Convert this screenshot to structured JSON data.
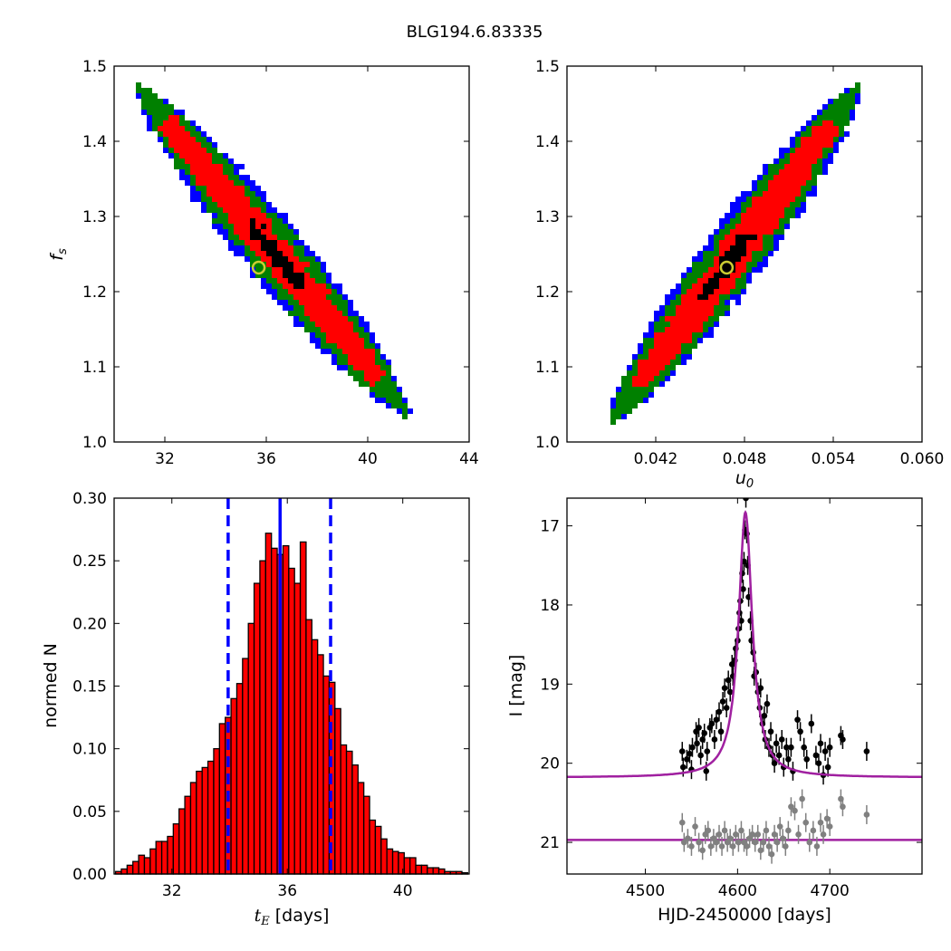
{
  "title": "BLG194.6.83335",
  "colors": {
    "sigma1": "#000000",
    "sigma2": "#ff0000",
    "sigma3": "#008000",
    "sigma4": "#0000ff",
    "best_marker": "#cccc33",
    "hist_fill": "#ff0000",
    "vline": "#0000ff",
    "model": "#a020a0",
    "residuals": "#808080",
    "data": "#000000"
  },
  "chart_data": [
    {
      "type": "heatmap",
      "panel": "top-left",
      "xlabel": "",
      "ylabel_text": "f",
      "ylabel_sub": "s",
      "xlim": [
        30,
        44
      ],
      "ylim": [
        1.0,
        1.5
      ],
      "xticks": [
        "32",
        "36",
        "40",
        "44"
      ],
      "yticks": [
        "1.0",
        "1.1",
        "1.2",
        "1.3",
        "1.4",
        "1.5"
      ],
      "ridge": {
        "x_start": 31.0,
        "y_start": 1.47,
        "x_end": 41.5,
        "y_end": 1.04
      },
      "best_fit": {
        "x": 35.7,
        "y": 1.232
      }
    },
    {
      "type": "heatmap",
      "panel": "top-right",
      "xlabel_text": "u",
      "xlabel_sub": "0",
      "ylabel": "",
      "xlim": [
        0.036,
        0.06
      ],
      "ylim": [
        1.0,
        1.5
      ],
      "xticks": [
        "0.042",
        "0.048",
        "0.054",
        "0.060"
      ],
      "yticks": [
        "1.0",
        "1.1",
        "1.2",
        "1.3",
        "1.4",
        "1.5"
      ],
      "ridge": {
        "x_start": 0.0391,
        "y_start": 1.03,
        "x_end": 0.0556,
        "y_end": 1.47
      },
      "best_fit": {
        "x": 0.0468,
        "y": 1.232
      }
    },
    {
      "type": "bar",
      "panel": "bottom-left",
      "xlabel_text": "t",
      "xlabel_sub": "E",
      "xlabel_rest": "[days]",
      "ylabel": "normed N",
      "xlim": [
        30.0,
        42.3
      ],
      "ylim": [
        0.0,
        0.3
      ],
      "xticks": [
        "32",
        "36",
        "40"
      ],
      "yticks": [
        "0.00",
        "0.05",
        "0.10",
        "0.15",
        "0.20",
        "0.25",
        "0.30"
      ],
      "bin_start": 30.05,
      "bin_width": 0.2,
      "values": [
        0.002,
        0.004,
        0.007,
        0.01,
        0.015,
        0.013,
        0.02,
        0.026,
        0.026,
        0.03,
        0.04,
        0.052,
        0.062,
        0.073,
        0.082,
        0.085,
        0.09,
        0.1,
        0.12,
        0.125,
        0.14,
        0.152,
        0.172,
        0.2,
        0.232,
        0.25,
        0.272,
        0.26,
        0.255,
        0.262,
        0.244,
        0.232,
        0.265,
        0.203,
        0.187,
        0.175,
        0.158,
        0.153,
        0.132,
        0.103,
        0.098,
        0.087,
        0.073,
        0.062,
        0.043,
        0.038,
        0.028,
        0.02,
        0.018,
        0.017,
        0.013,
        0.013,
        0.007,
        0.007,
        0.005,
        0.005,
        0.004,
        0.002,
        0.002,
        0.002,
        0.001
      ],
      "median": 35.75,
      "lower": 33.95,
      "upper": 37.5
    },
    {
      "type": "scatter",
      "panel": "bottom-right",
      "xlabel": "HJD-2450000 [days]",
      "ylabel": "I [mag]",
      "xlim": [
        4415,
        4800
      ],
      "ylim": [
        21.4,
        16.65
      ],
      "xticks": [
        "4500",
        "4600",
        "4700"
      ],
      "yticks": [
        "17",
        "18",
        "19",
        "20",
        "21"
      ],
      "model": {
        "t0": 4608.5,
        "base": 20.18,
        "peak": 16.83,
        "width": 9.0
      },
      "residual_baseline": 20.97,
      "data_points": [
        [
          4540,
          19.85
        ],
        [
          4541,
          20.05
        ],
        [
          4545,
          19.95
        ],
        [
          4548,
          19.88
        ],
        [
          4550,
          20.08
        ],
        [
          4551,
          19.8
        ],
        [
          4555,
          19.6
        ],
        [
          4556,
          19.75
        ],
        [
          4558,
          19.55
        ],
        [
          4560,
          19.9
        ],
        [
          4562,
          19.7
        ],
        [
          4564,
          19.62
        ],
        [
          4566,
          20.1
        ],
        [
          4567,
          19.85
        ],
        [
          4570,
          19.55
        ],
        [
          4572,
          19.5
        ],
        [
          4575,
          19.7
        ],
        [
          4577,
          19.45
        ],
        [
          4580,
          19.35
        ],
        [
          4582,
          19.6
        ],
        [
          4584,
          19.22
        ],
        [
          4586,
          19.05
        ],
        [
          4588,
          19.3
        ],
        [
          4590,
          18.95
        ],
        [
          4592,
          19.1
        ],
        [
          4594,
          18.75
        ],
        [
          4595,
          18.9
        ],
        [
          4597,
          18.7
        ],
        [
          4598,
          18.55
        ],
        [
          4600,
          18.45
        ],
        [
          4601,
          18.3
        ],
        [
          4602,
          18.1
        ],
        [
          4603,
          17.95
        ],
        [
          4604,
          18.2
        ],
        [
          4605,
          17.6
        ],
        [
          4606,
          17.8
        ],
        [
          4607,
          17.45
        ],
        [
          4608,
          17.05
        ],
        [
          4609,
          16.65
        ],
        [
          4610,
          17.1
        ],
        [
          4611,
          17.5
        ],
        [
          4612,
          17.9
        ],
        [
          4614,
          18.2
        ],
        [
          4615,
          18.45
        ],
        [
          4617,
          18.6
        ],
        [
          4618,
          18.9
        ],
        [
          4620,
          18.85
        ],
        [
          4622,
          19.1
        ],
        [
          4624,
          19.3
        ],
        [
          4625,
          19.05
        ],
        [
          4627,
          19.5
        ],
        [
          4629,
          19.4
        ],
        [
          4630,
          19.7
        ],
        [
          4632,
          19.25
        ],
        [
          4634,
          19.8
        ],
        [
          4636,
          19.6
        ],
        [
          4638,
          19.9
        ],
        [
          4640,
          20.0
        ],
        [
          4642,
          19.75
        ],
        [
          4645,
          19.9
        ],
        [
          4648,
          19.7
        ],
        [
          4650,
          20.05
        ],
        [
          4653,
          19.8
        ],
        [
          4655,
          19.95
        ],
        [
          4658,
          19.8
        ],
        [
          4660,
          20.1
        ],
        [
          4665,
          19.45
        ],
        [
          4668,
          19.6
        ],
        [
          4672,
          19.8
        ],
        [
          4675,
          19.95
        ],
        [
          4680,
          19.5
        ],
        [
          4685,
          19.9
        ],
        [
          4688,
          20.0
        ],
        [
          4690,
          19.75
        ],
        [
          4693,
          20.15
        ],
        [
          4695,
          19.85
        ],
        [
          4698,
          20.05
        ],
        [
          4700,
          19.8
        ],
        [
          4712,
          19.65
        ],
        [
          4714,
          19.7
        ],
        [
          4740,
          19.85
        ]
      ],
      "residual_points": [
        [
          4540,
          20.75
        ],
        [
          4542,
          21.0
        ],
        [
          4546,
          20.95
        ],
        [
          4550,
          21.05
        ],
        [
          4554,
          20.8
        ],
        [
          4558,
          21.0
        ],
        [
          4562,
          21.1
        ],
        [
          4565,
          20.9
        ],
        [
          4568,
          20.85
        ],
        [
          4571,
          21.05
        ],
        [
          4574,
          20.95
        ],
        [
          4577,
          21.0
        ],
        [
          4580,
          20.9
        ],
        [
          4583,
          21.05
        ],
        [
          4586,
          20.85
        ],
        [
          4589,
          21.0
        ],
        [
          4592,
          20.95
        ],
        [
          4595,
          21.05
        ],
        [
          4598,
          20.9
        ],
        [
          4601,
          21.0
        ],
        [
          4604,
          20.85
        ],
        [
          4607,
          21.0
        ],
        [
          4610,
          21.05
        ],
        [
          4613,
          20.95
        ],
        [
          4616,
          20.9
        ],
        [
          4619,
          21.0
        ],
        [
          4622,
          20.9
        ],
        [
          4625,
          21.1
        ],
        [
          4628,
          21.0
        ],
        [
          4631,
          20.85
        ],
        [
          4634,
          21.05
        ],
        [
          4637,
          21.15
        ],
        [
          4640,
          20.9
        ],
        [
          4643,
          21.0
        ],
        [
          4646,
          20.8
        ],
        [
          4649,
          20.95
        ],
        [
          4652,
          21.05
        ],
        [
          4655,
          20.85
        ],
        [
          4658,
          20.55
        ],
        [
          4662,
          20.6
        ],
        [
          4666,
          20.9
        ],
        [
          4670,
          20.45
        ],
        [
          4674,
          20.75
        ],
        [
          4678,
          21.0
        ],
        [
          4682,
          20.85
        ],
        [
          4686,
          21.05
        ],
        [
          4690,
          20.75
        ],
        [
          4693,
          20.9
        ],
        [
          4697,
          20.7
        ],
        [
          4700,
          20.8
        ],
        [
          4712,
          20.45
        ],
        [
          4714,
          20.55
        ],
        [
          4740,
          20.65
        ]
      ]
    }
  ]
}
